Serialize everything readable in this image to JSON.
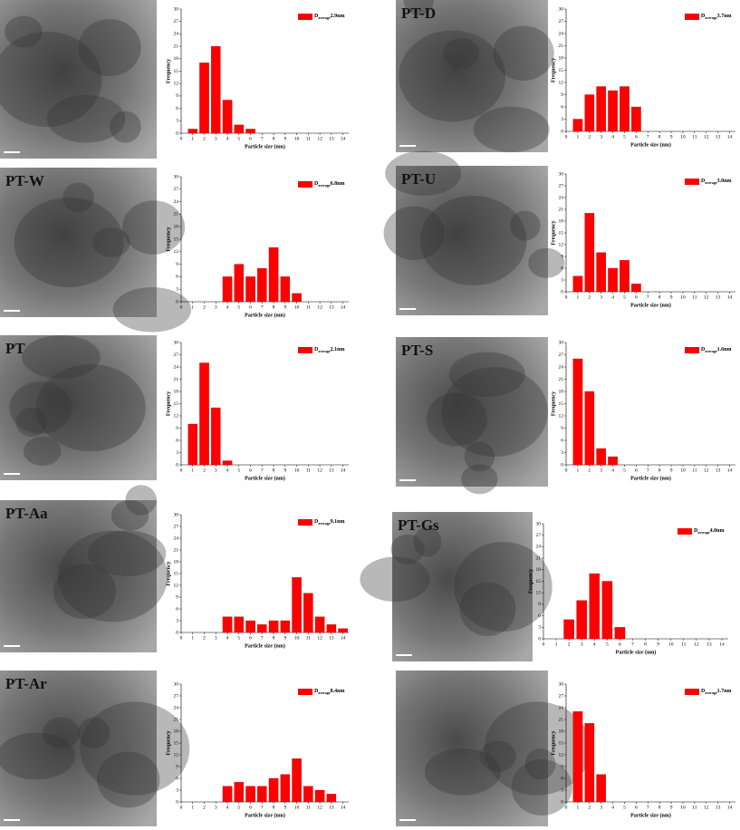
{
  "chart_data": [
    {
      "type": "bar",
      "legend": {
        "main": "D",
        "sub": "average",
        "value": "2.9nm"
      },
      "x": [
        1,
        2,
        3,
        4,
        5,
        6
      ],
      "series": [
        {
          "color": "#ff0000",
          "values": [
            1,
            17,
            21,
            8,
            2,
            1
          ]
        }
      ],
      "xlim": [
        0,
        14.5
      ],
      "ylim": [
        0,
        30
      ],
      "xticks": [
        0,
        1,
        2,
        3,
        4,
        5,
        6,
        7,
        8,
        9,
        10,
        11,
        12,
        13,
        14
      ],
      "yticks": [
        0,
        3,
        6,
        9,
        12,
        15,
        18,
        21,
        24,
        27,
        30
      ],
      "x_label": "Particle size (nm)",
      "y_label": "Frequency"
    },
    {
      "type": "bar",
      "panel_label": "PT-D",
      "legend": {
        "main": "D",
        "sub": "average",
        "value": "3.7nm"
      },
      "x": [
        1,
        2,
        3,
        4,
        5,
        6
      ],
      "series": [
        {
          "color": "#ff0000",
          "values": [
            3,
            9,
            11,
            10,
            11,
            6
          ]
        }
      ],
      "xlim": [
        0,
        14.5
      ],
      "ylim": [
        0,
        30
      ],
      "xticks": [
        0,
        1,
        2,
        3,
        4,
        5,
        6,
        7,
        8,
        9,
        10,
        11,
        12,
        13,
        14
      ],
      "yticks": [
        0,
        3,
        6,
        9,
        12,
        15,
        18,
        21,
        24,
        27,
        30
      ],
      "x_label": "Particle size (nm)",
      "y_label": "Frequency"
    },
    {
      "type": "bar",
      "panel_label": "PT-W",
      "legend": {
        "main": "D",
        "sub": "average",
        "value": "6.8nm"
      },
      "x": [
        4,
        5,
        6,
        7,
        8,
        9,
        10
      ],
      "series": [
        {
          "color": "#ff0000",
          "values": [
            6,
            9,
            6,
            8,
            13,
            6,
            2
          ]
        }
      ],
      "xlim": [
        0,
        14.5
      ],
      "ylim": [
        0,
        30
      ],
      "xticks": [
        0,
        1,
        2,
        3,
        4,
        5,
        6,
        7,
        8,
        9,
        10,
        11,
        12,
        13,
        14
      ],
      "yticks": [
        0,
        3,
        6,
        9,
        12,
        15,
        18,
        21,
        24,
        27,
        30
      ],
      "x_label": "Particle size (nm)",
      "y_label": "Frequency"
    },
    {
      "type": "bar",
      "panel_label": "PT-U",
      "legend": {
        "main": "D",
        "sub": "average",
        "value": "3.0nm"
      },
      "x": [
        1,
        2,
        3,
        4,
        5,
        6
      ],
      "series": [
        {
          "color": "#ff0000",
          "values": [
            4,
            20,
            10,
            6,
            8,
            2
          ]
        }
      ],
      "xlim": [
        0,
        14.5
      ],
      "ylim": [
        0,
        30
      ],
      "xticks": [
        0,
        1,
        2,
        3,
        4,
        5,
        6,
        7,
        8,
        9,
        10,
        11,
        12,
        13,
        14
      ],
      "yticks": [
        0,
        3,
        6,
        9,
        12,
        15,
        18,
        21,
        24,
        27,
        30
      ],
      "x_label": "Particle size (nm)",
      "y_label": "Frequency"
    },
    {
      "type": "bar",
      "panel_label": "PT",
      "legend": {
        "main": "D",
        "sub": "average",
        "value": "2.1nm"
      },
      "x": [
        1,
        2,
        3,
        4
      ],
      "series": [
        {
          "color": "#ff0000",
          "values": [
            10,
            25,
            14,
            1
          ]
        }
      ],
      "xlim": [
        0,
        14.5
      ],
      "ylim": [
        0,
        30
      ],
      "xticks": [
        0,
        1,
        2,
        3,
        4,
        5,
        6,
        7,
        8,
        9,
        10,
        11,
        12,
        13,
        14
      ],
      "yticks": [
        0,
        3,
        6,
        9,
        12,
        15,
        18,
        21,
        24,
        27,
        30
      ],
      "x_label": "Particle size (nm)",
      "y_label": "Frequency"
    },
    {
      "type": "bar",
      "panel_label": "PT-S",
      "legend": {
        "main": "D",
        "sub": "average",
        "value": "1.6nm"
      },
      "x": [
        1,
        2,
        3,
        4
      ],
      "series": [
        {
          "color": "#ff0000",
          "values": [
            26,
            18,
            4,
            2
          ]
        }
      ],
      "xlim": [
        0,
        14.5
      ],
      "ylim": [
        0,
        30
      ],
      "xticks": [
        0,
        1,
        2,
        3,
        4,
        5,
        6,
        7,
        8,
        9,
        10,
        11,
        12,
        13,
        14
      ],
      "yticks": [
        0,
        3,
        6,
        9,
        12,
        15,
        18,
        21,
        24,
        27,
        30
      ],
      "x_label": "Particle size (nm)",
      "y_label": "Frequency"
    },
    {
      "type": "bar",
      "panel_label": "PT-Aa",
      "legend": {
        "main": "D",
        "sub": "average",
        "value": "9.1nm"
      },
      "x": [
        4,
        5,
        6,
        7,
        8,
        9,
        10,
        11,
        12,
        13,
        14
      ],
      "series": [
        {
          "color": "#ff0000",
          "values": [
            4,
            4,
            3,
            2,
            3,
            3,
            14,
            10,
            4,
            2,
            1
          ]
        }
      ],
      "xlim": [
        0,
        14.5
      ],
      "ylim": [
        0,
        30
      ],
      "xticks": [
        0,
        1,
        2,
        3,
        4,
        5,
        6,
        7,
        8,
        9,
        10,
        11,
        12,
        13,
        14
      ],
      "yticks": [
        0,
        3,
        6,
        9,
        12,
        15,
        18,
        21,
        24,
        27,
        30
      ],
      "x_label": "Particle size (nm)",
      "y_label": "Frequency"
    },
    {
      "type": "bar",
      "panel_label": "PT-Gs",
      "legend": {
        "main": "D",
        "sub": "average",
        "value": "4.0nm"
      },
      "x": [
        2,
        3,
        4,
        5,
        6
      ],
      "series": [
        {
          "color": "#ff0000",
          "values": [
            5,
            10,
            17,
            15,
            3
          ]
        }
      ],
      "xlim": [
        0,
        14.5
      ],
      "ylim": [
        0,
        30
      ],
      "xticks": [
        0,
        1,
        2,
        3,
        4,
        5,
        6,
        7,
        8,
        9,
        10,
        11,
        12,
        13,
        14
      ],
      "yticks": [
        0,
        3,
        6,
        9,
        12,
        15,
        18,
        21,
        24,
        27,
        30
      ],
      "x_label": "Particle size (nm)",
      "y_label": "Frequency"
    },
    {
      "type": "bar",
      "panel_label": "PT-Ar",
      "legend": {
        "main": "D",
        "sub": "average",
        "value": "8.4nm"
      },
      "x": [
        4,
        5,
        6,
        7,
        8,
        9,
        10,
        11,
        12,
        13
      ],
      "series": [
        {
          "color": "#ff0000",
          "values": [
            4,
            5,
            4,
            4,
            6,
            7,
            11,
            4,
            3,
            2
          ]
        }
      ],
      "xlim": [
        0,
        14.5
      ],
      "ylim": [
        0,
        30
      ],
      "xticks": [
        0,
        1,
        2,
        3,
        4,
        5,
        6,
        7,
        8,
        9,
        10,
        11,
        12,
        13,
        14
      ],
      "yticks": [
        0,
        3,
        6,
        9,
        12,
        15,
        18,
        21,
        24,
        27,
        30
      ],
      "x_label": "Particle size (nm)",
      "y_label": "Frequency"
    },
    {
      "type": "bar",
      "legend": {
        "main": "D",
        "sub": "average",
        "value": "1.7nm"
      },
      "x": [
        1,
        2,
        3
      ],
      "series": [
        {
          "color": "#ff0000",
          "values": [
            23,
            20,
            7
          ]
        }
      ],
      "xlim": [
        0,
        14.5
      ],
      "ylim": [
        0,
        30
      ],
      "xticks": [
        0,
        1,
        2,
        3,
        4,
        5,
        6,
        7,
        8,
        9,
        10,
        11,
        12,
        13,
        14
      ],
      "yticks": [
        0,
        3,
        6,
        9,
        12,
        15,
        18,
        21,
        24,
        27,
        30
      ],
      "x_label": "Particle size (nm)",
      "y_label": "Frequency"
    }
  ]
}
